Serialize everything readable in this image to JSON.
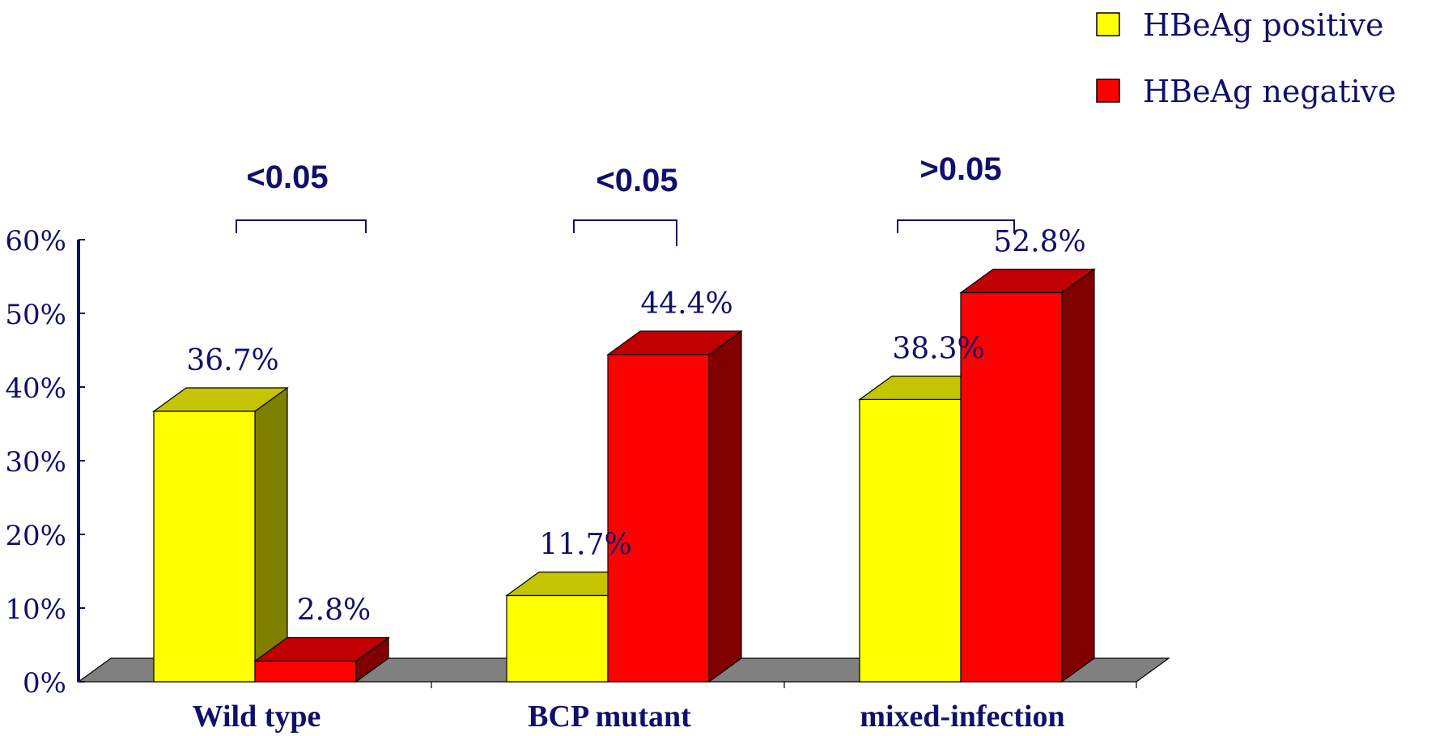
{
  "chart_data": {
    "type": "bar",
    "title": "",
    "xlabel": "",
    "ylabel": "",
    "ylim": [
      0,
      60
    ],
    "y_ticks": [
      "0%",
      "10%",
      "20%",
      "30%",
      "40%",
      "50%",
      "60%"
    ],
    "categories": [
      "Wild type",
      "BCP mutant",
      "mixed-infection"
    ],
    "series": [
      {
        "name": "HBeAg positive",
        "values": [
          36.7,
          11.7,
          38.3
        ],
        "labels": [
          "36.7%",
          "11.7%",
          "38.3%"
        ],
        "color": "#ffff00"
      },
      {
        "name": "HBeAg negative",
        "values": [
          2.8,
          44.4,
          52.8
        ],
        "labels": [
          "2.8%",
          "44.4%",
          "52.8%"
        ],
        "color": "#ff0000"
      }
    ],
    "p_values": [
      "<0.05",
      "<0.05",
      ">0.05"
    ],
    "legend_position": "top-right",
    "grid": false,
    "style": "3d"
  },
  "colors": {
    "text": "#10106b",
    "positive_front": "#ffff00",
    "positive_top": "#c4c400",
    "positive_side": "#808000",
    "negative_front": "#ff0000",
    "negative_top": "#c00000",
    "negative_side": "#800000",
    "floor": "#808080"
  }
}
